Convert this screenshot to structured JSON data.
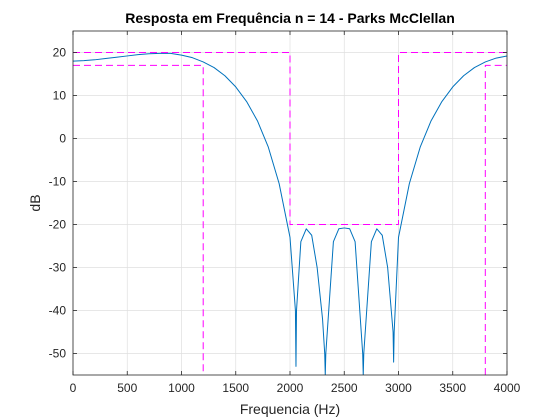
{
  "chart_data": {
    "type": "line",
    "title": "Resposta em Frequência n = 14 - Parks McClellan",
    "xlabel": "Frequencia (Hz)",
    "ylabel": "dB",
    "xlim": [
      0,
      4000
    ],
    "ylim": [
      -55,
      25
    ],
    "xticks": [
      0,
      500,
      1000,
      1500,
      2000,
      2500,
      3000,
      3500,
      4000
    ],
    "yticks": [
      -50,
      -40,
      -30,
      -20,
      -10,
      0,
      10,
      20
    ],
    "grid": true,
    "series": [
      {
        "color": "#0072BD",
        "style": "solid",
        "x": [
          0,
          100,
          200,
          300,
          400,
          500,
          600,
          700,
          800,
          900,
          1000,
          1100,
          1200,
          1300,
          1400,
          1500,
          1600,
          1700,
          1800,
          1900,
          2000,
          2050,
          2055,
          2060,
          2100,
          2150,
          2200,
          2250,
          2300,
          2320,
          2325,
          2330,
          2400,
          2450,
          2500,
          2550,
          2600,
          2670,
          2675,
          2680,
          2750,
          2800,
          2850,
          2900,
          2950,
          2955,
          2960,
          3000,
          3100,
          3200,
          3300,
          3400,
          3500,
          3600,
          3700,
          3800,
          3900,
          4000
        ],
        "y": [
          18.0,
          18.1,
          18.3,
          18.6,
          18.9,
          19.2,
          19.5,
          19.7,
          19.8,
          19.8,
          19.4,
          18.8,
          17.8,
          16.5,
          14.6,
          12.0,
          8.6,
          4.1,
          -2.0,
          -10.5,
          -23.0,
          -40.0,
          -53.0,
          -40.0,
          -24.0,
          -21.0,
          -22.5,
          -30.0,
          -42.0,
          -50.0,
          -55.0,
          -50.0,
          -24.0,
          -21.0,
          -20.8,
          -21.0,
          -24.0,
          -50.0,
          -55.0,
          -50.0,
          -24.0,
          -21.0,
          -22.5,
          -30.0,
          -45.0,
          -52.0,
          -45.0,
          -23.0,
          -10.5,
          -2.0,
          4.1,
          8.6,
          12.0,
          14.6,
          16.5,
          17.8,
          18.7,
          19.2
        ]
      },
      {
        "color": "#FF00FF",
        "style": "dashed",
        "x": [
          0,
          2000,
          2000,
          3000,
          3000,
          4000
        ],
        "y": [
          20,
          20,
          -20,
          -20,
          20,
          20
        ]
      },
      {
        "color": "#FF00FF",
        "style": "dashed",
        "x": [
          0,
          1200,
          1200
        ],
        "y": [
          17,
          17,
          -55
        ]
      },
      {
        "color": "#FF00FF",
        "style": "dashed",
        "x": [
          3800,
          3800,
          4000
        ],
        "y": [
          -55,
          17,
          17
        ]
      }
    ]
  }
}
